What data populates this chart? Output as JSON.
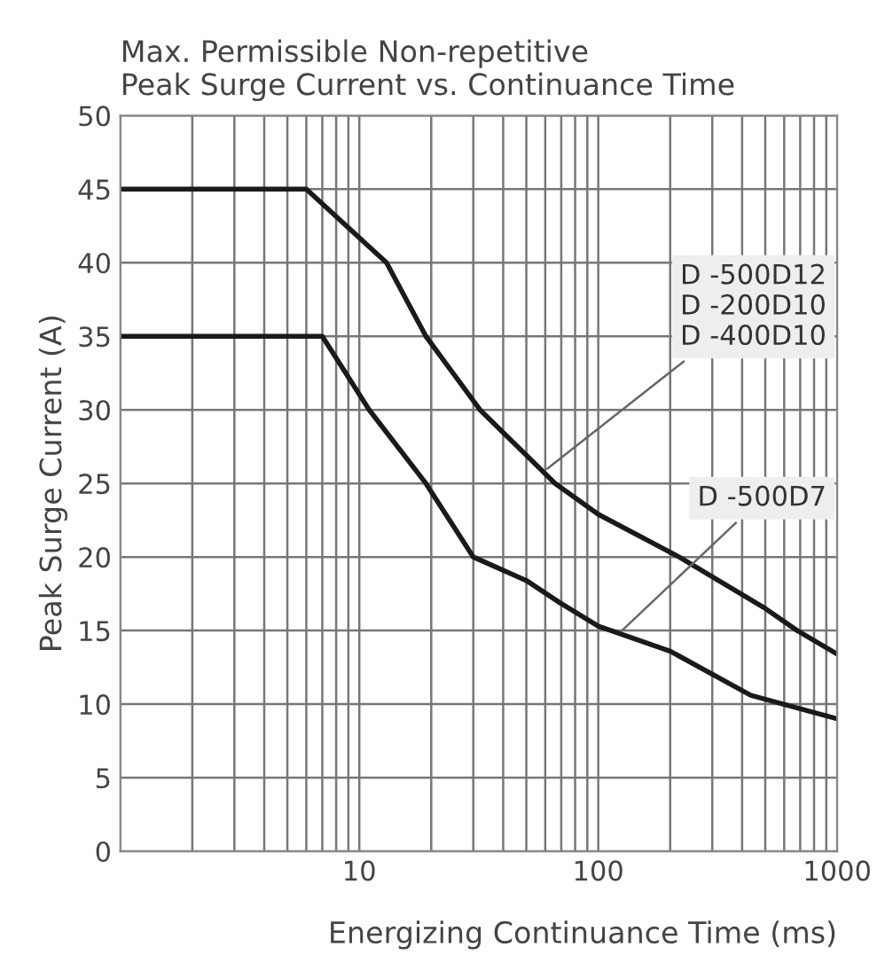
{
  "chart_data": {
    "type": "line",
    "title": "Max. Permissible Non-repetitive\nPeak Surge Current vs. Continuance Time",
    "xlabel": "Energizing Continuance Time (ms)",
    "ylabel": "Peak Surge Current (A)",
    "log": "x",
    "xlim": [
      1,
      1000
    ],
    "ylim": [
      0,
      50
    ],
    "xticks": [
      {
        "value": 1,
        "label": null
      },
      {
        "value": 2,
        "label": null
      },
      {
        "value": 3,
        "label": null
      },
      {
        "value": 4,
        "label": null
      },
      {
        "value": 5,
        "label": null
      },
      {
        "value": 6,
        "label": null
      },
      {
        "value": 7,
        "label": null
      },
      {
        "value": 8,
        "label": null
      },
      {
        "value": 9,
        "label": null
      },
      10,
      {
        "value": 20,
        "label": null
      },
      {
        "value": 30,
        "label": null
      },
      {
        "value": 40,
        "label": null
      },
      {
        "value": 50,
        "label": null
      },
      {
        "value": 60,
        "label": null
      },
      {
        "value": 70,
        "label": null
      },
      {
        "value": 80,
        "label": null
      },
      {
        "value": 90,
        "label": null
      },
      100,
      {
        "value": 200,
        "label": null
      },
      {
        "value": 300,
        "label": null
      },
      {
        "value": 400,
        "label": null
      },
      {
        "value": 500,
        "label": null
      },
      {
        "value": 600,
        "label": null
      },
      {
        "value": 700,
        "label": null
      },
      {
        "value": 800,
        "label": null
      },
      {
        "value": 900,
        "label": null
      },
      1000
    ],
    "yticks": [
      0,
      5,
      10,
      15,
      20,
      25,
      30,
      35,
      40,
      45,
      50
    ],
    "grid": true,
    "marker": "none",
    "line_style": "solid",
    "series": [
      {
        "color": "#1a1a1a",
        "x": [
          1,
          6,
          13,
          19,
          32,
          66,
          100,
          218,
          500,
          680,
          1000
        ],
        "values": [
          45,
          45,
          40,
          35,
          30,
          25,
          22.9,
          20,
          16.5,
          15,
          13.4
        ]
      },
      {
        "color": "#1a1a1a",
        "x": [
          1,
          7,
          11,
          19,
          30,
          50,
          69,
          100,
          200,
          435,
          1000
        ],
        "values": [
          35,
          35,
          30,
          25,
          20,
          18.4,
          16.9,
          15.3,
          13.6,
          10.6,
          9
        ]
      }
    ],
    "annotations": [
      {
        "text": "D -500D12\nD -200D10\nD -400D10",
        "x": 59,
        "y": 25.8
      },
      {
        "text": "D -500D7",
        "x": 122,
        "y": 14.8
      }
    ]
  }
}
